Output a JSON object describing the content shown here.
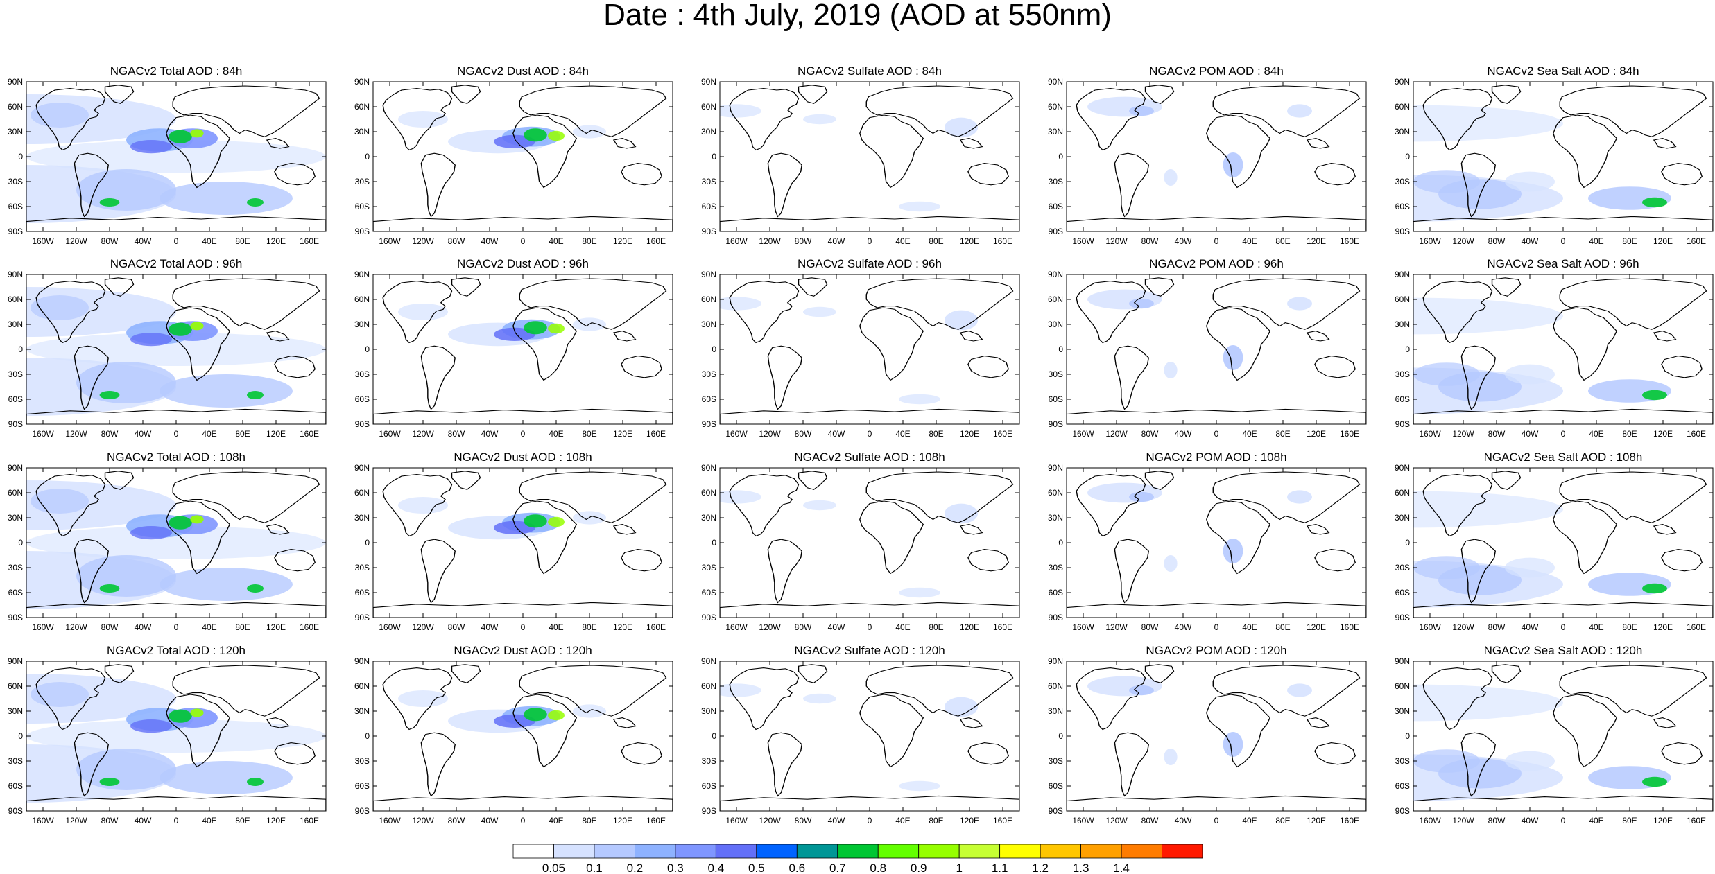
{
  "figure": {
    "title": "Date : 4th July, 2019 (AOD at 550nm)"
  },
  "map_axes": {
    "lon_labels": [
      "160W",
      "120W",
      "80W",
      "40W",
      "0",
      "40E",
      "80E",
      "120E",
      "160E"
    ],
    "lon_values": [
      -160,
      -120,
      -80,
      -40,
      0,
      40,
      80,
      120,
      160
    ],
    "lat_labels": [
      "90N",
      "60N",
      "30N",
      "0",
      "30S",
      "60S",
      "90S"
    ],
    "lat_values": [
      90,
      60,
      30,
      0,
      -30,
      -60,
      -90
    ],
    "lon_range": [
      -180,
      180
    ],
    "lat_range": [
      -90,
      90
    ]
  },
  "panels": [
    {
      "title": "NGACv2 Total AOD : 84h",
      "species": "total",
      "lead_hours": 84
    },
    {
      "title": "NGACv2 Dust AOD : 84h",
      "species": "dust",
      "lead_hours": 84
    },
    {
      "title": "NGACv2 Sulfate AOD : 84h",
      "species": "sulfate",
      "lead_hours": 84
    },
    {
      "title": "NGACv2 POM AOD : 84h",
      "species": "pom",
      "lead_hours": 84
    },
    {
      "title": "NGACv2 Sea Salt AOD : 84h",
      "species": "seasalt",
      "lead_hours": 84
    },
    {
      "title": "NGACv2 Total AOD : 96h",
      "species": "total",
      "lead_hours": 96
    },
    {
      "title": "NGACv2 Dust AOD : 96h",
      "species": "dust",
      "lead_hours": 96
    },
    {
      "title": "NGACv2 Sulfate AOD : 96h",
      "species": "sulfate",
      "lead_hours": 96
    },
    {
      "title": "NGACv2 POM AOD : 96h",
      "species": "pom",
      "lead_hours": 96
    },
    {
      "title": "NGACv2 Sea Salt AOD : 96h",
      "species": "seasalt",
      "lead_hours": 96
    },
    {
      "title": "NGACv2 Total AOD : 108h",
      "species": "total",
      "lead_hours": 108
    },
    {
      "title": "NGACv2 Dust AOD : 108h",
      "species": "dust",
      "lead_hours": 108
    },
    {
      "title": "NGACv2 Sulfate AOD : 108h",
      "species": "sulfate",
      "lead_hours": 108
    },
    {
      "title": "NGACv2 POM AOD : 108h",
      "species": "pom",
      "lead_hours": 108
    },
    {
      "title": "NGACv2 Sea Salt AOD : 108h",
      "species": "seasalt",
      "lead_hours": 108
    },
    {
      "title": "NGACv2 Total AOD : 120h",
      "species": "total",
      "lead_hours": 120
    },
    {
      "title": "NGACv2 Dust AOD : 120h",
      "species": "dust",
      "lead_hours": 120
    },
    {
      "title": "NGACv2 Sulfate AOD : 120h",
      "species": "sulfate",
      "lead_hours": 120
    },
    {
      "title": "NGACv2 POM AOD : 120h",
      "species": "pom",
      "lead_hours": 120
    },
    {
      "title": "NGACv2 Sea Salt  AOD : 120h",
      "species": "seasalt",
      "lead_hours": 120
    }
  ],
  "colorbar": {
    "labels": [
      "0.05",
      "0.1",
      "0.2",
      "0.3",
      "0.4",
      "0.5",
      "0.6",
      "0.7",
      "0.8",
      "0.9",
      "1",
      "1.1",
      "1.2",
      "1.3",
      "1.4"
    ],
    "colors": [
      "#ffffff",
      "#d6e2ff",
      "#b5c9ff",
      "#8eb2ff",
      "#7f96ff",
      "#6370f8",
      "#0063ff",
      "#009696",
      "#00c633",
      "#63ff00",
      "#96ff00",
      "#c6ff33",
      "#ffff00",
      "#ffc600",
      "#ffa000",
      "#ff7c00",
      "#ff1900"
    ]
  },
  "plume_colors": {
    "light": "#d6e2ff",
    "medium": "#b5c9ff",
    "mid": "#8eb2ff",
    "strong": "#7f96ff",
    "heavy": "#6370f8",
    "green": "#00c633",
    "lime": "#96ff00",
    "yellow": "#ffff00",
    "red": "#ff1900"
  }
}
